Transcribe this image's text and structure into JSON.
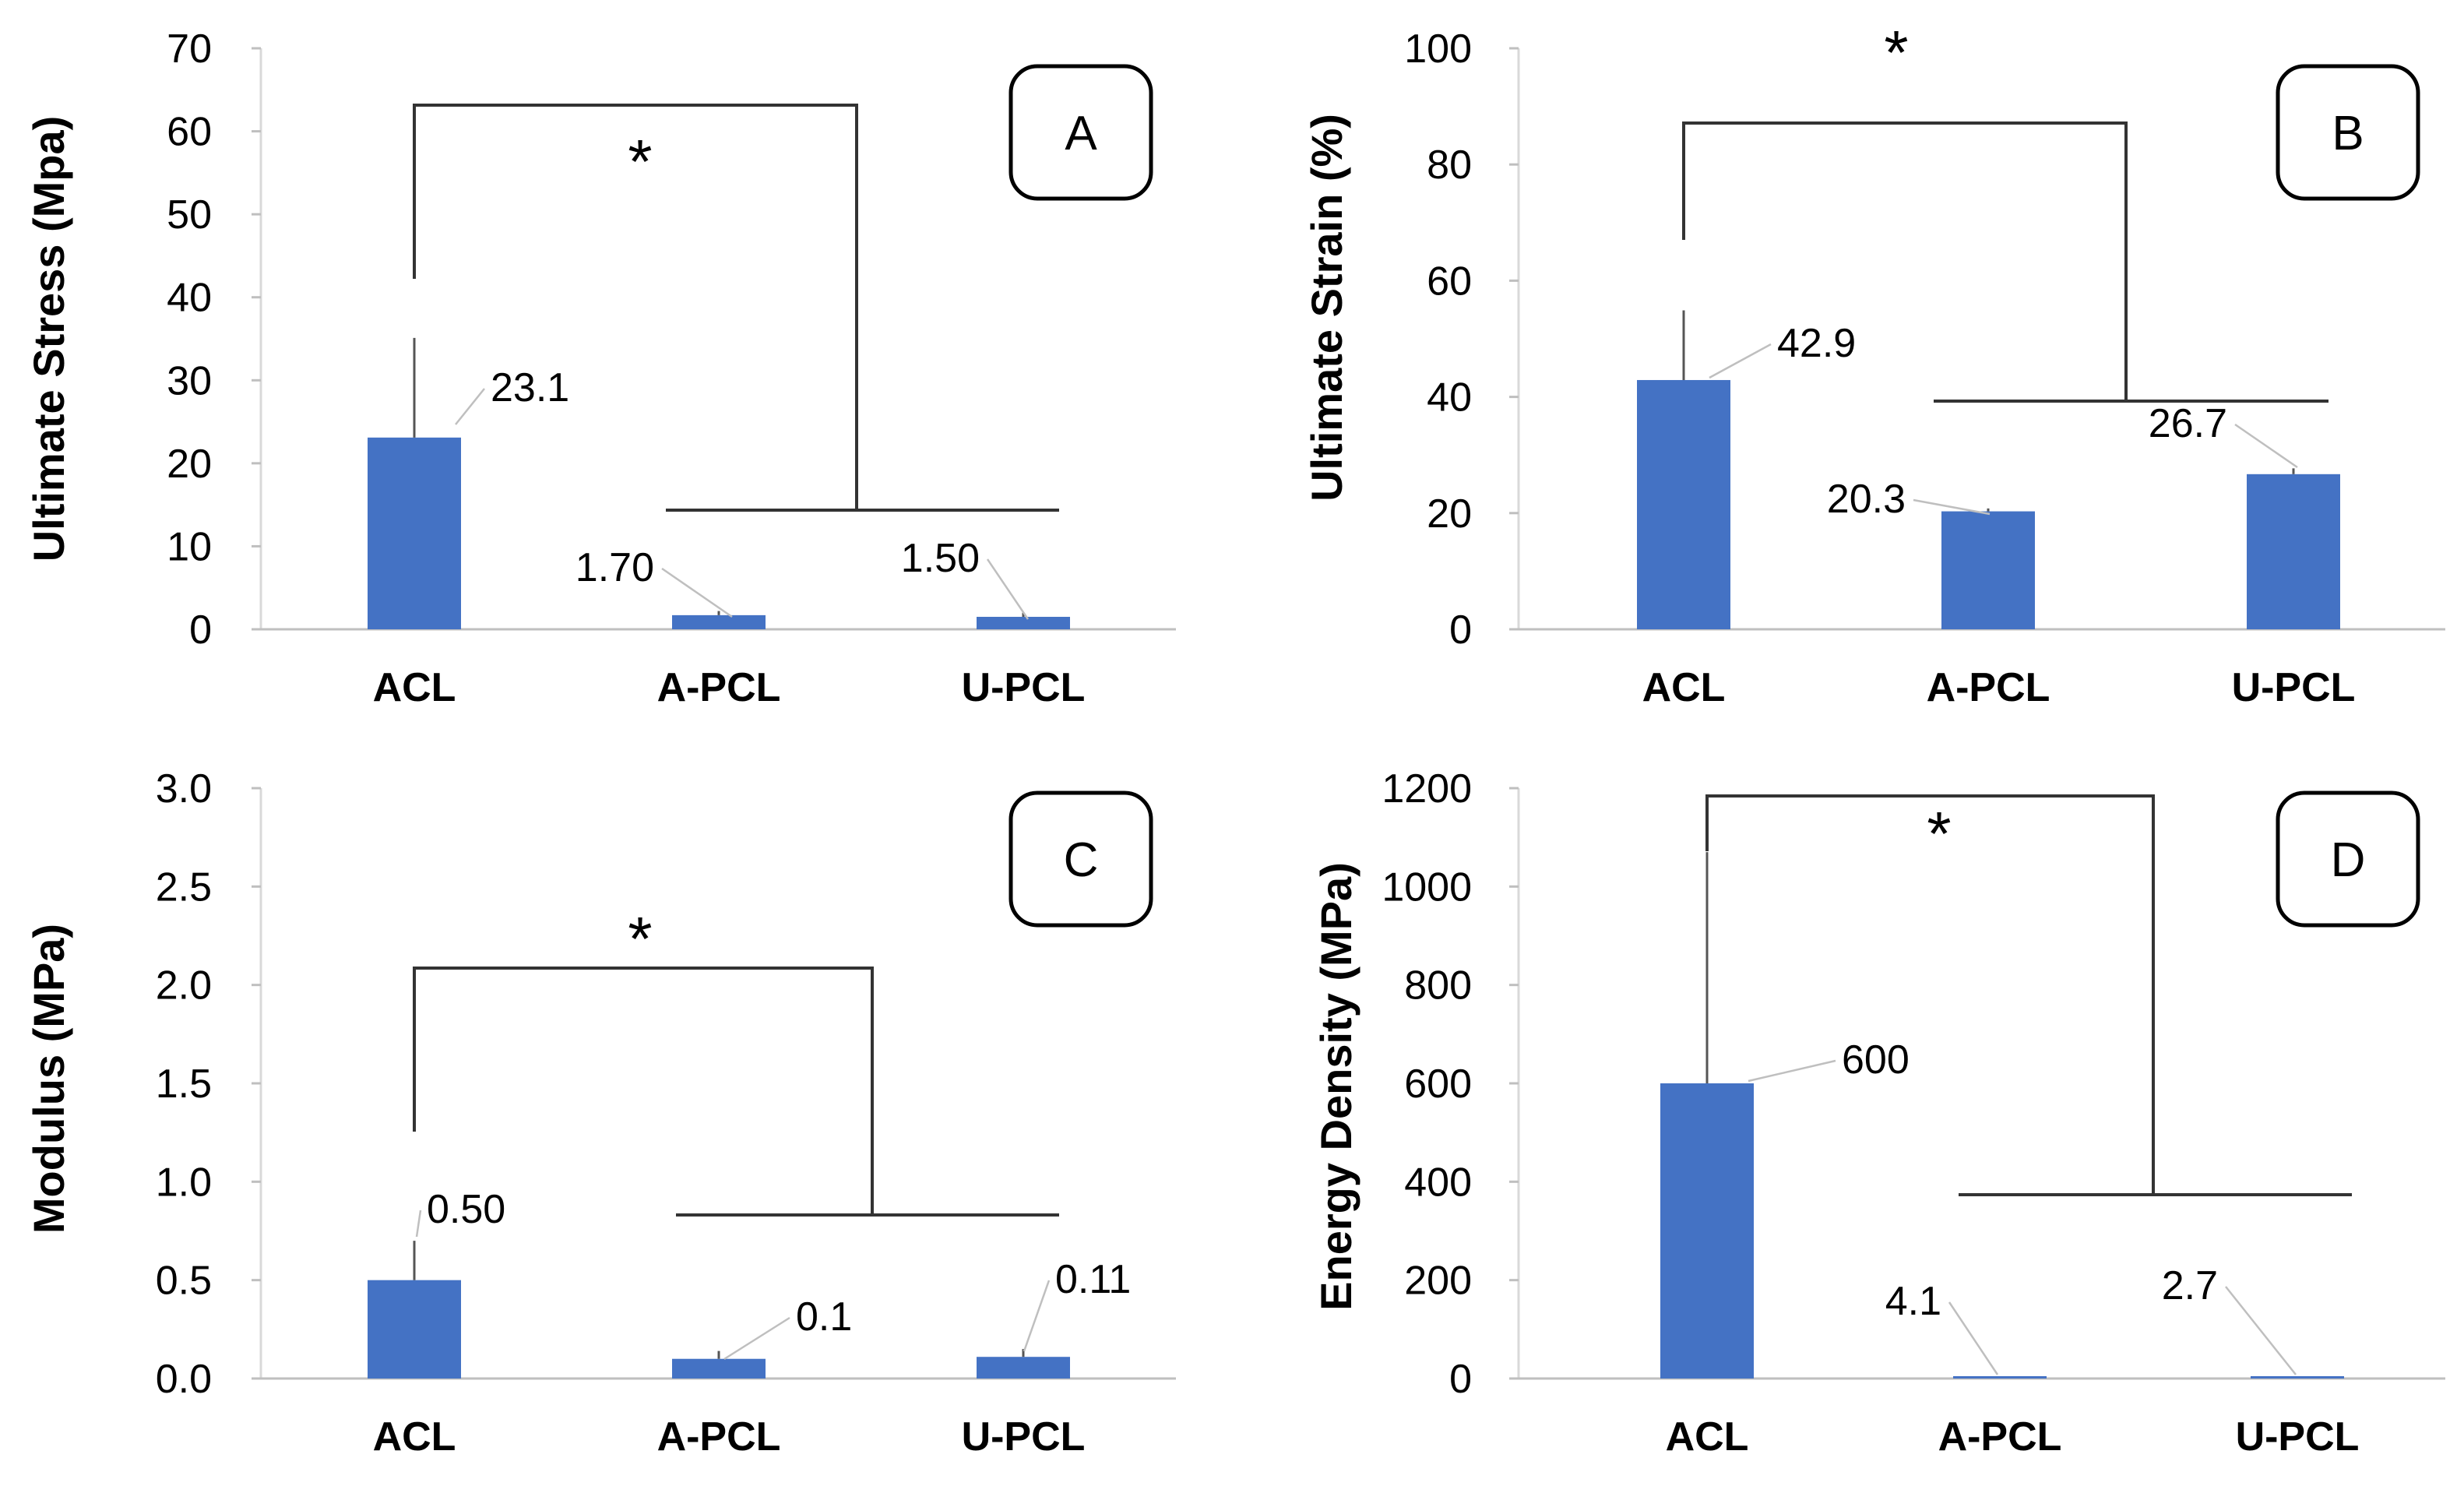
{
  "chart_data": [
    {
      "type": "bar",
      "panel_label": "A",
      "categories": [
        "ACL",
        "A-PCL",
        "U-PCL"
      ],
      "values": [
        23.1,
        1.7,
        1.5
      ],
      "value_labels": [
        "23.1",
        "1.70",
        "1.50"
      ],
      "error": [
        12,
        0.5,
        0.5
      ],
      "ylabel": "Ultimate Stress (Mpa)",
      "ylim": [
        0,
        70
      ],
      "yticks": [
        "0",
        "10",
        "20",
        "30",
        "40",
        "50",
        "60",
        "70"
      ],
      "significance": "*",
      "bar_color": "#4472C4"
    },
    {
      "type": "bar",
      "panel_label": "B",
      "categories": [
        "ACL",
        "A-PCL",
        "U-PCL"
      ],
      "values": [
        42.9,
        20.3,
        26.7
      ],
      "value_labels": [
        "42.9",
        "20.3",
        "26.7"
      ],
      "error": [
        12,
        0.5,
        1
      ],
      "ylabel": "Ultimate Strain (%)",
      "ylim": [
        0,
        100
      ],
      "yticks": [
        "0",
        "20",
        "40",
        "60",
        "80",
        "100"
      ],
      "significance": "*",
      "bar_color": "#4472C4"
    },
    {
      "type": "bar",
      "panel_label": "C",
      "categories": [
        "ACL",
        "A-PCL",
        "U-PCL"
      ],
      "values": [
        0.5,
        0.1,
        0.11
      ],
      "value_labels": [
        "0.50",
        "0.1",
        "0.11"
      ],
      "error": [
        0.2,
        0.04,
        0.04
      ],
      "ylabel": "Modulus (MPa)",
      "ylim": [
        0,
        3.0
      ],
      "yticks": [
        "0.0",
        "0.5",
        "1.0",
        "1.5",
        "2.0",
        "2.5",
        "3.0"
      ],
      "significance": "*",
      "bar_color": "#4472C4"
    },
    {
      "type": "bar",
      "panel_label": "D",
      "categories": [
        "ACL",
        "A-PCL",
        "U-PCL"
      ],
      "values": [
        600,
        4.1,
        2.7
      ],
      "value_labels": [
        "600",
        "4.1",
        "2.7"
      ],
      "error": [
        470,
        0,
        0
      ],
      "ylabel": "Energy Density (MPa)",
      "ylim": [
        0,
        1200
      ],
      "yticks": [
        "0",
        "200",
        "400",
        "600",
        "800",
        "1000",
        "1200"
      ],
      "significance": "*",
      "bar_color": "#4472C4"
    }
  ]
}
